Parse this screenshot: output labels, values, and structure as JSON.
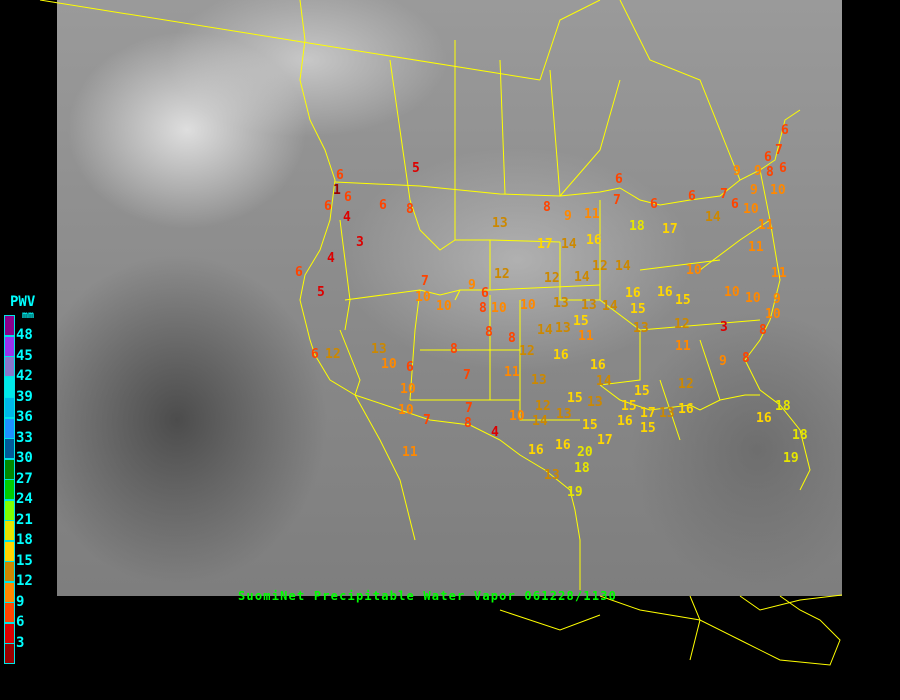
{
  "caption": "SuomiNet Precipitable Water Vapor 061228/1130",
  "legend": {
    "title": "PWV",
    "unit": "mm",
    "bins": [
      {
        "label": "48",
        "color": "#8b008b"
      },
      {
        "label": "45",
        "color": "#9933ee"
      },
      {
        "label": "42",
        "color": "#8877cc"
      },
      {
        "label": "39",
        "color": "#00e8e8"
      },
      {
        "label": "36",
        "color": "#00b8e8"
      },
      {
        "label": "33",
        "color": "#1e90ff"
      },
      {
        "label": "30",
        "color": "#005a9a"
      },
      {
        "label": "27",
        "color": "#008800"
      },
      {
        "label": "24",
        "color": "#00cc00"
      },
      {
        "label": "21",
        "color": "#80ff00"
      },
      {
        "label": "18",
        "color": "#e6e600"
      },
      {
        "label": "15",
        "color": "#ffd700"
      },
      {
        "label": "12",
        "color": "#cc8800"
      },
      {
        "label": "9",
        "color": "#ff8800"
      },
      {
        "label": "6",
        "color": "#ff4400"
      },
      {
        "label": "3",
        "color": "#dd0000"
      },
      {
        "label": "",
        "color": "#990000"
      }
    ]
  },
  "border_color": "#ffff00",
  "stations": [
    5,
    6,
    1,
    6,
    6,
    4,
    6,
    8,
    3,
    4,
    6,
    5,
    13,
    8,
    9,
    11,
    6,
    7,
    6,
    6,
    9,
    9,
    8,
    6,
    6,
    7,
    6,
    7,
    6,
    10,
    14,
    9,
    10,
    18,
    17,
    11,
    16,
    17,
    14,
    12,
    7,
    10,
    10,
    9,
    6,
    8,
    10,
    12,
    12,
    14,
    14,
    10,
    11,
    11,
    16,
    16,
    15,
    10,
    10,
    9,
    10,
    10,
    13,
    13,
    14,
    15,
    15,
    8,
    8,
    12,
    14,
    13,
    11,
    3,
    8,
    12,
    13,
    11,
    9,
    8,
    12,
    8,
    13,
    12,
    6,
    10,
    6,
    7,
    10,
    11,
    13,
    16,
    16,
    14,
    15,
    15,
    13,
    12,
    13,
    10,
    14,
    15,
    15,
    16,
    17,
    13,
    15,
    17,
    16,
    20,
    16,
    18,
    13,
    19,
    16,
    18,
    18,
    19,
    16,
    10,
    7,
    7,
    8,
    4,
    11
  ]
}
